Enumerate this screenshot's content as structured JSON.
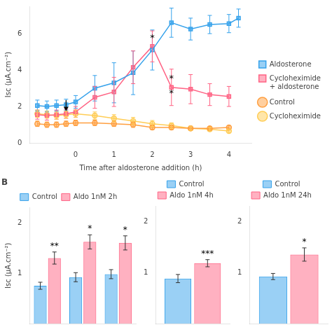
{
  "chart_data": [
    {
      "type": "line",
      "xlabel": "Time after aldosterone addition (h)",
      "ylabel": "Isc (μA.cm⁻²)",
      "xlim": [
        -1.2,
        4.6
      ],
      "xticks": [
        0,
        1,
        2,
        3,
        4
      ],
      "ylim": [
        0,
        7.5
      ],
      "yticks": [
        0,
        2,
        4,
        6
      ],
      "grid": false,
      "legend": "right",
      "series": [
        {
          "name": "Aldosterone",
          "marker": "square",
          "x": [
            -1.0,
            -0.75,
            -0.5,
            -0.25,
            0.0,
            0.5,
            1.0,
            1.5,
            2.0,
            2.5,
            3.0,
            3.5,
            4.0,
            4.25
          ],
          "values": [
            2.05,
            2.0,
            2.05,
            2.1,
            2.25,
            3.0,
            3.3,
            3.85,
            5.1,
            6.6,
            6.25,
            6.5,
            6.55,
            6.85
          ],
          "errors": [
            0.3,
            0.3,
            0.3,
            0.3,
            0.35,
            0.7,
            1.1,
            1.2,
            1.1,
            0.8,
            0.6,
            0.5,
            0.5,
            0.5
          ]
        },
        {
          "name": "Cycloheximide\n+ aldosterone",
          "marker": "square",
          "x": [
            -1.0,
            -0.75,
            -0.5,
            -0.25,
            0.0,
            0.5,
            1.0,
            1.5,
            2.0,
            2.5,
            3.0,
            3.5,
            4.0
          ],
          "values": [
            1.55,
            1.5,
            1.55,
            1.6,
            1.7,
            2.5,
            2.8,
            4.15,
            5.3,
            3.05,
            2.95,
            2.65,
            2.55
          ],
          "errors": [
            0.25,
            0.25,
            0.25,
            0.25,
            0.3,
            0.6,
            0.8,
            0.9,
            0.85,
            1.0,
            0.8,
            0.6,
            0.55
          ]
        },
        {
          "name": "Control",
          "marker": "circle",
          "x": [
            -1.0,
            -0.75,
            -0.5,
            -0.25,
            0.0,
            0.5,
            1.0,
            1.5,
            2.0,
            2.5,
            3.0,
            3.5,
            4.0
          ],
          "values": [
            1.05,
            1.0,
            1.0,
            1.05,
            1.1,
            1.1,
            1.05,
            1.0,
            0.85,
            0.85,
            0.8,
            0.8,
            0.85
          ],
          "errors": [
            0.15,
            0.15,
            0.15,
            0.15,
            0.15,
            0.15,
            0.15,
            0.15,
            0.12,
            0.12,
            0.1,
            0.1,
            0.1
          ]
        },
        {
          "name": "Cycloheximide",
          "marker": "circle",
          "x": [
            -1.0,
            -0.75,
            -0.5,
            -0.25,
            0.0,
            0.5,
            1.0,
            1.5,
            2.0,
            2.5,
            3.0,
            3.5,
            4.0
          ],
          "values": [
            1.6,
            1.55,
            1.5,
            1.55,
            1.6,
            1.5,
            1.35,
            1.2,
            1.05,
            0.95,
            0.8,
            0.75,
            0.65
          ],
          "errors": [
            0.2,
            0.2,
            0.2,
            0.2,
            0.2,
            0.2,
            0.2,
            0.2,
            0.18,
            0.15,
            0.12,
            0.1,
            0.1
          ]
        }
      ],
      "annotations": [
        {
          "x": 2.0,
          "y": 5.5,
          "text": "*"
        },
        {
          "x": 2.5,
          "y": 3.25,
          "text": "*"
        },
        {
          "x": 2.5,
          "y": 2.45,
          "text": "*"
        },
        {
          "type": "arrow",
          "x": -0.25,
          "y_start": 2.35,
          "y_end": 1.75
        }
      ]
    },
    {
      "type": "bar",
      "title": "B",
      "ylabel": "Isc (μA.cm⁻²)",
      "categories": [
        null,
        null,
        null
      ],
      "series": [
        {
          "name": "Control",
          "values": [
            0.75,
            0.92,
            0.98
          ],
          "errors": [
            0.07,
            0.09,
            0.09
          ]
        },
        {
          "name": "Aldo 1nM 2h",
          "values": [
            1.3,
            1.62,
            1.6
          ],
          "errors": [
            0.12,
            0.14,
            0.14
          ]
        }
      ],
      "ylim": [
        0,
        2.3
      ],
      "yticks": [
        1,
        2
      ],
      "grid": false,
      "legend": "top",
      "tick_labels": "y",
      "annotations": [
        {
          "text": "**",
          "series": "Aldo 1nM 2h",
          "index": 0
        },
        {
          "text": "*",
          "series": "Aldo 1nM 2h",
          "index": 1
        },
        {
          "text": "*",
          "series": "Aldo 1nM 2h",
          "index": 2
        }
      ]
    },
    {
      "type": "bar",
      "categories": [
        null
      ],
      "series": [
        {
          "name": "Control",
          "values": [
            0.88
          ],
          "errors": [
            0.08
          ]
        },
        {
          "name": "Aldo 1nM 4h",
          "values": [
            1.18
          ],
          "errors": [
            0.07
          ]
        }
      ],
      "ylim": [
        0,
        2.3
      ],
      "yticks": [
        1,
        2
      ],
      "grid": false,
      "legend": "top",
      "tick_labels": "y",
      "annotations": [
        {
          "text": "***",
          "series": "Aldo 1nM 4h",
          "index": 0
        }
      ]
    },
    {
      "type": "bar",
      "categories": [
        null
      ],
      "series": [
        {
          "name": "Control",
          "values": [
            0.92
          ],
          "errors": [
            0.06
          ]
        },
        {
          "name": "Aldo 1nM 24h",
          "values": [
            1.35
          ],
          "errors": [
            0.13
          ]
        }
      ],
      "ylim": [
        0,
        2.3
      ],
      "yticks": [
        1,
        2
      ],
      "grid": false,
      "legend": "top",
      "tick_labels": "y",
      "annotations": [
        {
          "text": "*",
          "series": "Aldo 1nM 24h",
          "index": 0
        }
      ]
    }
  ]
}
